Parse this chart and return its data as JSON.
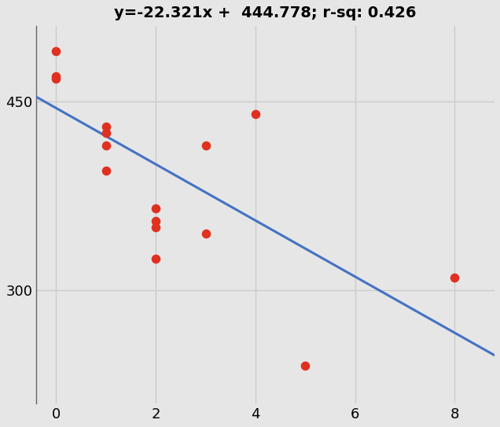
{
  "title": "y=-22.321x +  444.778; r-sq: 0.426",
  "slope": -22.321,
  "intercept": 444.778,
  "scatter_x": [
    0,
    0,
    0,
    1,
    1,
    1,
    1,
    2,
    2,
    2,
    2,
    3,
    3,
    4,
    5,
    8
  ],
  "scatter_y": [
    490,
    470,
    468,
    430,
    425,
    415,
    395,
    365,
    355,
    350,
    325,
    415,
    345,
    440,
    240,
    310
  ],
  "point_color": "#e03020",
  "line_color": "#4472C4",
  "bg_color": "#e6e6e6",
  "plot_bg_color": "#e6e6e6",
  "xlim": [
    -0.4,
    8.8
  ],
  "ylim": [
    210,
    510
  ],
  "line_x_start": -0.4,
  "line_x_end": 8.8,
  "xticks": [
    0,
    2,
    4,
    6,
    8
  ],
  "yticks": [
    300,
    450
  ],
  "tick_fontsize": 13,
  "title_fontsize": 14,
  "point_size": 70,
  "line_width": 2.2,
  "grid_color": "#cccccc",
  "spine_color": "#666666",
  "left_spine_ymin": 210,
  "left_spine_ymax": 510
}
